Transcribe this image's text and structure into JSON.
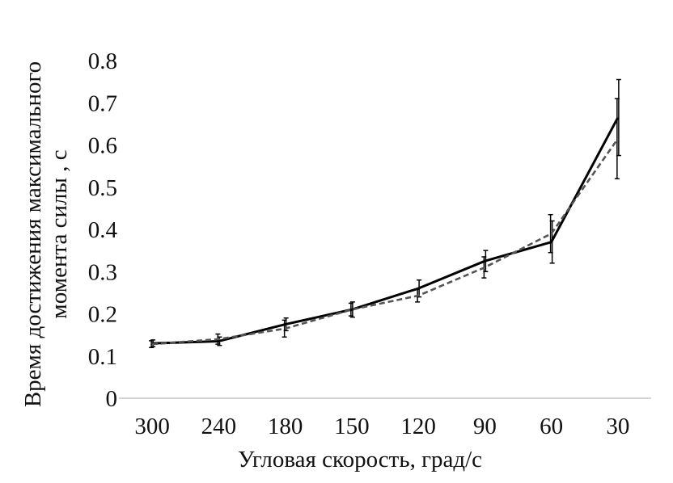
{
  "chart_data": {
    "type": "line",
    "title": "",
    "xlabel": "Угловая скорость, град/с",
    "ylabel_lines": [
      "Время достижения максимального",
      "момента силы  , с"
    ],
    "categories": [
      "300",
      "240",
      "180",
      "150",
      "120",
      "90",
      "60",
      "30"
    ],
    "ylim": [
      0,
      0.8
    ],
    "yticks": [
      0,
      0.1,
      0.2,
      0.3,
      0.4,
      0.5,
      0.6,
      0.7,
      0.8
    ],
    "ytick_labels": [
      "0",
      "0.1",
      "0.2",
      "0.3",
      "0.4",
      "0.5",
      "0.6",
      "0.7",
      "0.8"
    ],
    "grid": false,
    "legend": "none",
    "series": [
      {
        "style": "solid",
        "color": "#000000",
        "values": [
          0.13,
          0.135,
          0.175,
          0.21,
          0.26,
          0.325,
          0.37,
          0.665
        ],
        "errors": [
          0.008,
          0.01,
          0.015,
          0.018,
          0.02,
          0.025,
          0.05,
          0.09
        ]
      },
      {
        "style": "dashed",
        "color": "#555555",
        "values": [
          0.128,
          0.14,
          0.165,
          0.21,
          0.243,
          0.31,
          0.39,
          0.615
        ],
        "errors": [
          0.008,
          0.012,
          0.02,
          0.015,
          0.015,
          0.025,
          0.045,
          0.095
        ]
      }
    ]
  }
}
